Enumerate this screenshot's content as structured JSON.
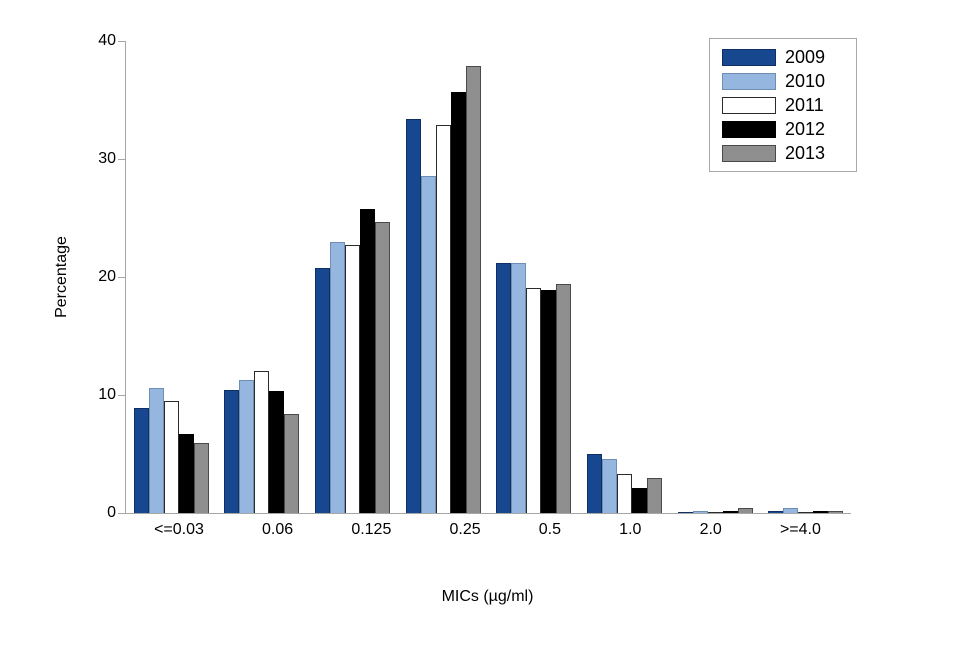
{
  "chart_data": {
    "type": "bar",
    "title": "",
    "xlabel": "MICs (µg/ml)",
    "ylabel": "Percentage",
    "ylim": [
      0,
      40
    ],
    "yticks": [
      0,
      10,
      20,
      30,
      40
    ],
    "grid": false,
    "legend_position": "top-right",
    "axis_color": "#a6a6a6",
    "text_color": "#000000",
    "categories": [
      "<=0.03",
      "0.06",
      "0.125",
      "0.25",
      "0.5",
      "1.0",
      "2.0",
      ">=4.0"
    ],
    "series": [
      {
        "name": "2009",
        "fill": "#17478f",
        "border": "#0f3064",
        "values": [
          8.9,
          10.4,
          20.8,
          33.4,
          21.2,
          5.0,
          0.1,
          0.2
        ]
      },
      {
        "name": "2010",
        "fill": "#94b6df",
        "border": "#6e8eb8",
        "values": [
          10.6,
          11.3,
          23.0,
          28.6,
          21.2,
          4.6,
          0.2,
          0.4
        ]
      },
      {
        "name": "2011",
        "fill": "#ffffff",
        "border": "#2b2b2b",
        "values": [
          9.5,
          12.0,
          22.7,
          32.9,
          19.1,
          3.3,
          0.1,
          0.1
        ]
      },
      {
        "name": "2012",
        "fill": "#000000",
        "border": "#000000",
        "values": [
          6.7,
          10.3,
          25.8,
          35.7,
          18.9,
          2.1,
          0.2,
          0.2
        ]
      },
      {
        "name": "2013",
        "fill": "#8f8f8f",
        "border": "#4a4a4a",
        "values": [
          5.9,
          8.4,
          24.7,
          37.9,
          19.4,
          3.0,
          0.4,
          0.2
        ]
      }
    ]
  }
}
